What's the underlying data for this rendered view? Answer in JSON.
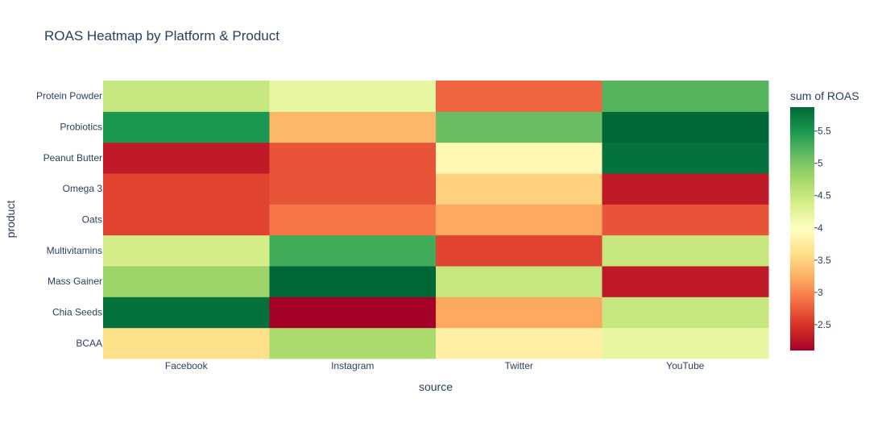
{
  "chart_data": {
    "type": "heatmap",
    "title": "ROAS Heatmap by Platform & Product",
    "xlabel": "source",
    "ylabel": "product",
    "x": [
      "Facebook",
      "Instagram",
      "Twitter",
      "YouTube"
    ],
    "y": [
      "BCAA",
      "Chia Seeds",
      "Mass Gainer",
      "Multivitamins",
      "Oats",
      "Omega 3",
      "Peanut Butter",
      "Probiotics",
      "Protein Powder"
    ],
    "z": [
      [
        3.6,
        4.7,
        3.8,
        4.2
      ],
      [
        5.8,
        2.1,
        3.2,
        4.5
      ],
      [
        4.8,
        5.9,
        4.5,
        2.3
      ],
      [
        4.4,
        5.3,
        2.6,
        4.5
      ],
      [
        2.6,
        2.9,
        3.2,
        2.7
      ],
      [
        2.6,
        2.7,
        3.5,
        2.3
      ],
      [
        2.3,
        2.7,
        3.9,
        5.8
      ],
      [
        5.5,
        3.3,
        5.1,
        5.9
      ],
      [
        4.5,
        4.2,
        2.8,
        5.2
      ]
    ],
    "colorbar": {
      "title": "sum of ROAS",
      "range": [
        2.1,
        5.87
      ],
      "ticks": [
        2.5,
        3,
        3.5,
        4,
        4.5,
        5,
        5.5
      ],
      "tick_labels": [
        "2.5",
        "3",
        "3.5",
        "4",
        "4.5",
        "5",
        "5.5"
      ]
    },
    "colorscale": [
      "#a50026",
      "#d73027",
      "#f46d43",
      "#fdae61",
      "#fee08b",
      "#ffffbf",
      "#d9ef8b",
      "#a6d96a",
      "#66bd63",
      "#1a9850",
      "#006837"
    ]
  }
}
